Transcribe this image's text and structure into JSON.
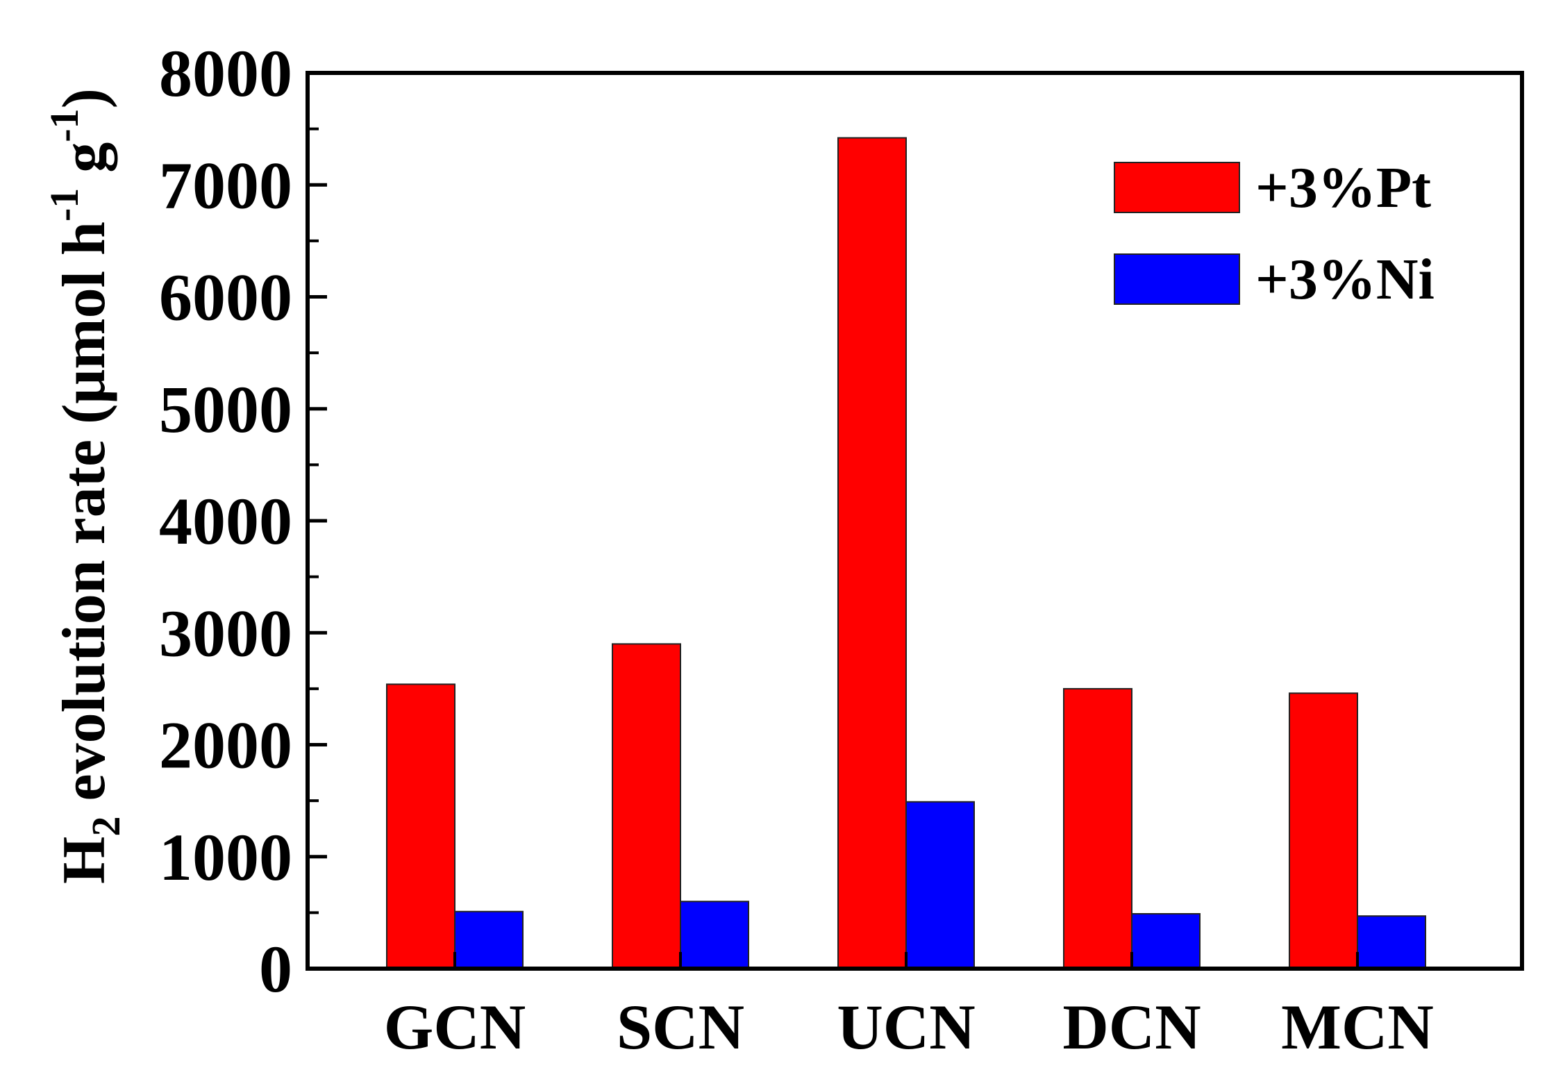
{
  "chart_data": {
    "type": "bar",
    "categories": [
      "GCN",
      "SCN",
      "UCN",
      "DCN",
      "MCN"
    ],
    "series": [
      {
        "name": "+3%Pt",
        "color": "#ff0000",
        "values": [
          2540,
          2900,
          7420,
          2500,
          2460
        ]
      },
      {
        "name": "+3%Ni",
        "color": "#0000ff",
        "values": [
          510,
          600,
          1490,
          490,
          470
        ]
      }
    ],
    "ylim": [
      0,
      8000
    ],
    "yticks": [
      "0",
      "1000",
      "2000",
      "3000",
      "4000",
      "5000",
      "6000",
      "7000",
      "8000"
    ],
    "ytick_values": [
      0,
      1000,
      2000,
      3000,
      4000,
      5000,
      6000,
      7000,
      8000
    ],
    "ylabel": {
      "main": "H",
      "sub2": "2",
      "mid": " evolution rate (μmol h",
      "sup1": "-1",
      "g": " g",
      "sup2": "-1",
      "close": ")"
    },
    "xlabel": "",
    "legend_position": "top-right",
    "grid": false
  }
}
